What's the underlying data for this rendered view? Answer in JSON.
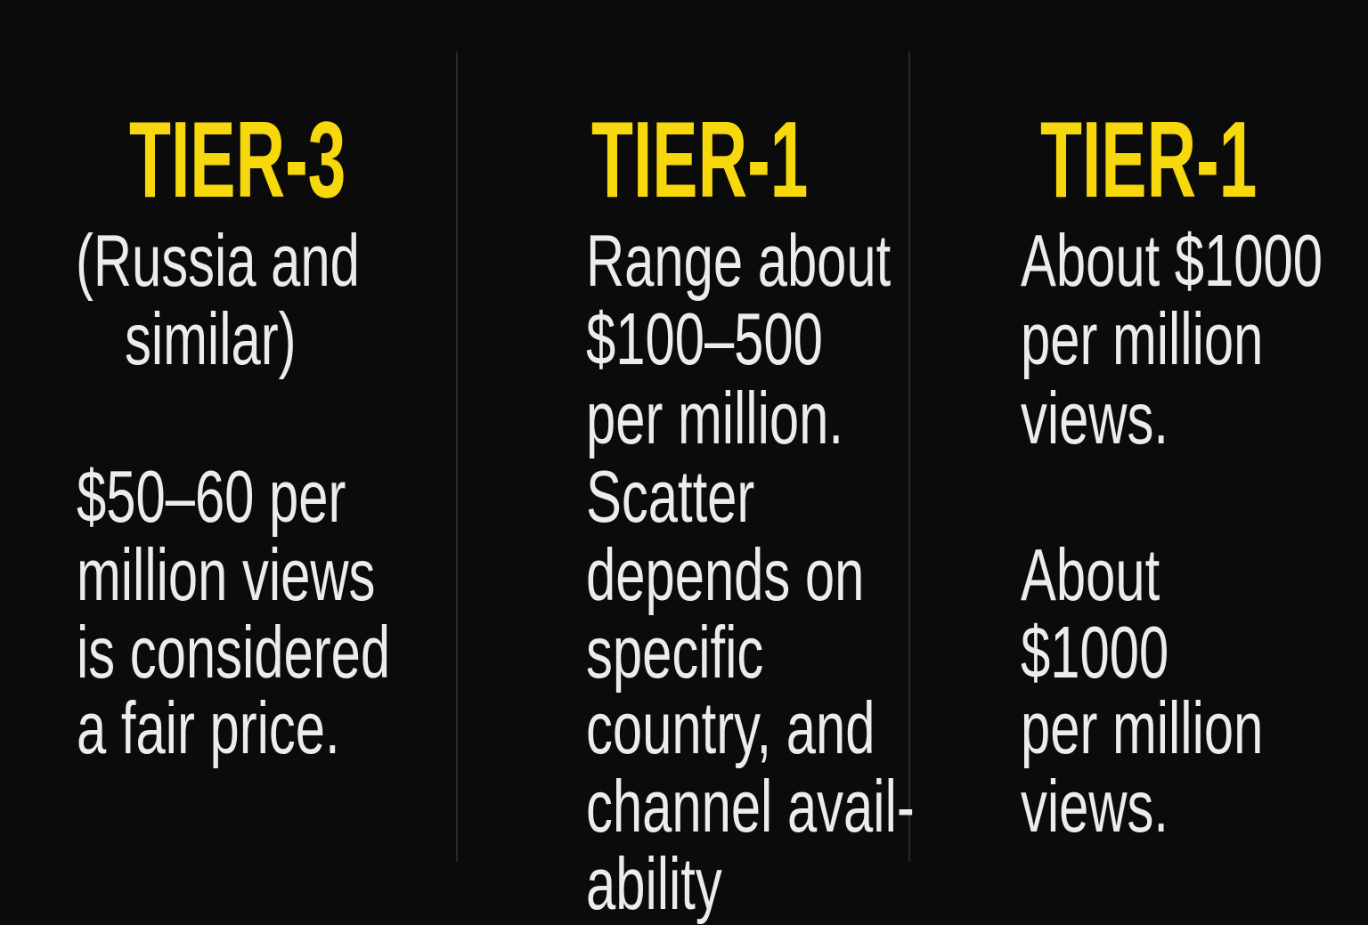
{
  "columns": [
    {
      "title": "TIER-3",
      "lines": [
        "(Russia and",
        "similar)",
        "$50–60 per",
        "million views",
        "is considered",
        "a fair price."
      ]
    },
    {
      "title": "TIER-1",
      "lines": [
        "Range about",
        "$100–500",
        "per million.",
        "Scatter",
        "depends on",
        "specific",
        "country, and",
        "channel avail-",
        "ability"
      ]
    },
    {
      "title": "TIER-1",
      "lines": [
        "About $1000",
        "per million",
        "views.",
        "About",
        "$1000",
        "per million",
        "views."
      ]
    }
  ],
  "colors": {
    "background": "#0b0b0b",
    "title": "#f7d80c",
    "text": "#ececec",
    "divider": "#26282c"
  }
}
